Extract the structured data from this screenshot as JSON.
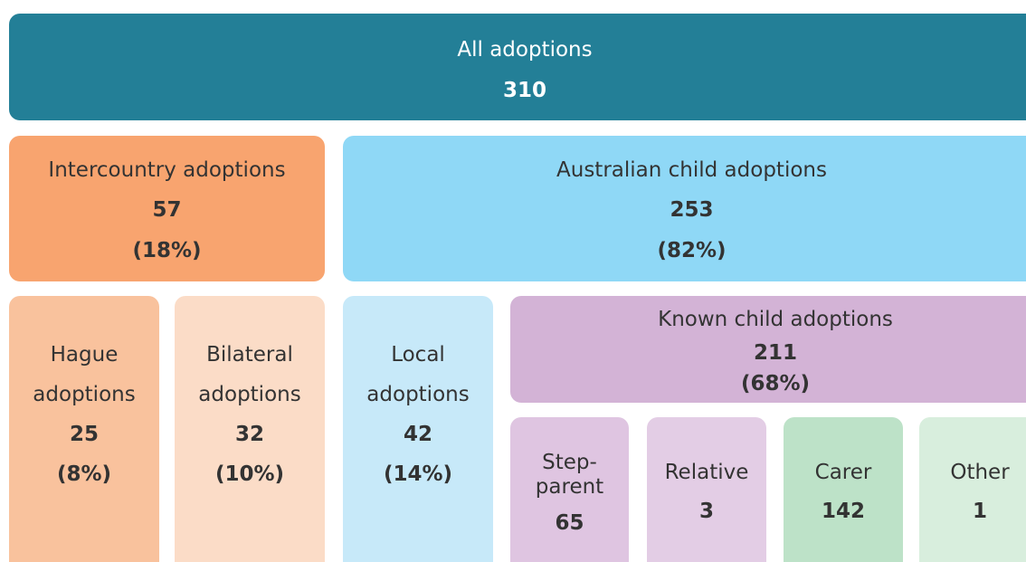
{
  "nodes": [
    {
      "label": [
        "All adoptions"
      ],
      "count": 310,
      "color": "#237f97",
      "text_color": "#ffffff"
    },
    {
      "label": [
        "Intercountry adoptions"
      ],
      "count": 57,
      "pct": "(18%)",
      "color": "#f8a46f",
      "text_color": "#333333"
    },
    {
      "label": [
        "Australian child adoptions"
      ],
      "count": 253,
      "pct": "(82%)",
      "color": "#8fd8f6",
      "text_color": "#333333"
    },
    {
      "label": [
        "Hague",
        "adoptions"
      ],
      "count": 25,
      "pct": "(8%)",
      "color": "#f9c29d",
      "text_color": "#333333"
    },
    {
      "label": [
        "Bilateral",
        "adoptions"
      ],
      "count": 32,
      "pct": "(10%)",
      "color": "#fbdcc7",
      "text_color": "#333333"
    },
    {
      "label": [
        "Local",
        "adoptions"
      ],
      "count": 42,
      "pct": "(14%)",
      "color": "#c7e9f9",
      "text_color": "#333333"
    },
    {
      "label": [
        "Known child adoptions"
      ],
      "count": 211,
      "pct": "(68%)",
      "color": "#d3b3d6",
      "text_color": "#333333"
    },
    {
      "label": [
        "Step-",
        "parent"
      ],
      "count": 65,
      "color": "#dfc5e1",
      "text_color": "#333333"
    },
    {
      "label": [
        "Relative"
      ],
      "count": 3,
      "color": "#e3cde5",
      "text_color": "#333333"
    },
    {
      "label": [
        "Carer"
      ],
      "count": 142,
      "color": "#bde2c8",
      "text_color": "#333333"
    },
    {
      "label": [
        "Other"
      ],
      "count": 1,
      "color": "#d8eedd",
      "text_color": "#333333"
    }
  ]
}
